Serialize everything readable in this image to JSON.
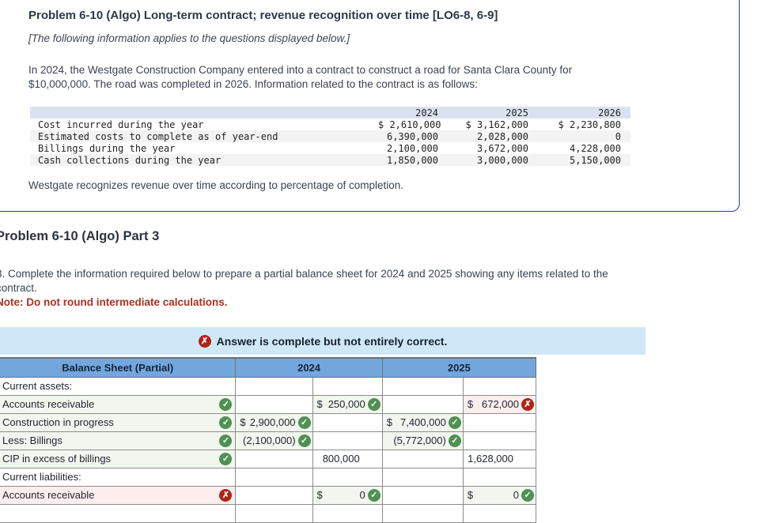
{
  "icons": {
    "check": "✓",
    "cross": "✗"
  },
  "problem_box": {
    "title": "Problem 6-10 (Algo) Long-term contract; revenue recognition over time [LO6-8, 6-9]",
    "subtitle": "[The following information applies to the questions displayed below.]",
    "intro_lines": [
      "In 2024, the Westgate Construction Company entered into a contract to construct a road for Santa Clara County for",
      "$10,000,000. The road was completed in 2026. Information related to the contract is as follows:"
    ],
    "closing": "Westgate recognizes revenue over time according to percentage of completion.",
    "cost_table": {
      "years": [
        "2024",
        "2025",
        "2026"
      ],
      "rows": [
        {
          "label": "Cost incurred during the year",
          "values": [
            "$ 2,610,000",
            "$ 3,162,000",
            "$ 2,230,800"
          ]
        },
        {
          "label": "Estimated costs to complete as of year-end",
          "values": [
            "6,390,000",
            "2,028,000",
            "0"
          ]
        },
        {
          "label": "Billings during the year",
          "values": [
            "2,100,000",
            "3,672,000",
            "4,228,000"
          ]
        },
        {
          "label": "Cash collections during the year",
          "values": [
            "1,850,000",
            "3,000,000",
            "5,150,000"
          ]
        }
      ]
    }
  },
  "part3": {
    "heading": "Problem 6-10 (Algo) Part 3",
    "question_lines": [
      "3. Complete the information required below to prepare a partial balance sheet for 2024 and 2025 showing any items related to the",
      "contract."
    ],
    "note": "Note: Do not round intermediate calculations."
  },
  "result_banner": {
    "text": "Answer is complete but not entirely correct."
  },
  "balance_sheet": {
    "header": {
      "label": "Balance Sheet (Partial)",
      "col2024": "2024",
      "col2025": "2025"
    },
    "rows": [
      {
        "label": "Current assets:"
      },
      {
        "label": "Accounts receivable",
        "cells": {
          "c2": {
            "symbol": "$",
            "amount": "250,000"
          },
          "c4": {
            "symbol": "$",
            "amount": "672,000"
          }
        }
      },
      {
        "label": "Construction in progress",
        "cells": {
          "c1": {
            "symbol": "$",
            "amount": "2,900,000"
          },
          "c3": {
            "symbol": "$",
            "amount": "7,400,000"
          }
        }
      },
      {
        "label": "Less: Billings",
        "cells": {
          "c1": {
            "amount": "(2,100,000)"
          },
          "c3": {
            "amount": "(5,772,000)"
          }
        }
      },
      {
        "label": "CIP in excess of billings",
        "cells": {
          "c2": {
            "amount": "800,000"
          },
          "c4": {
            "amount": "1,628,000"
          }
        }
      },
      {
        "label": "Current liabilities:"
      },
      {
        "label": "Accounts receivable",
        "cells": {
          "c2": {
            "symbol": "$",
            "amount": "0"
          },
          "c4": {
            "symbol": "$",
            "amount": "0"
          }
        }
      }
    ]
  }
}
